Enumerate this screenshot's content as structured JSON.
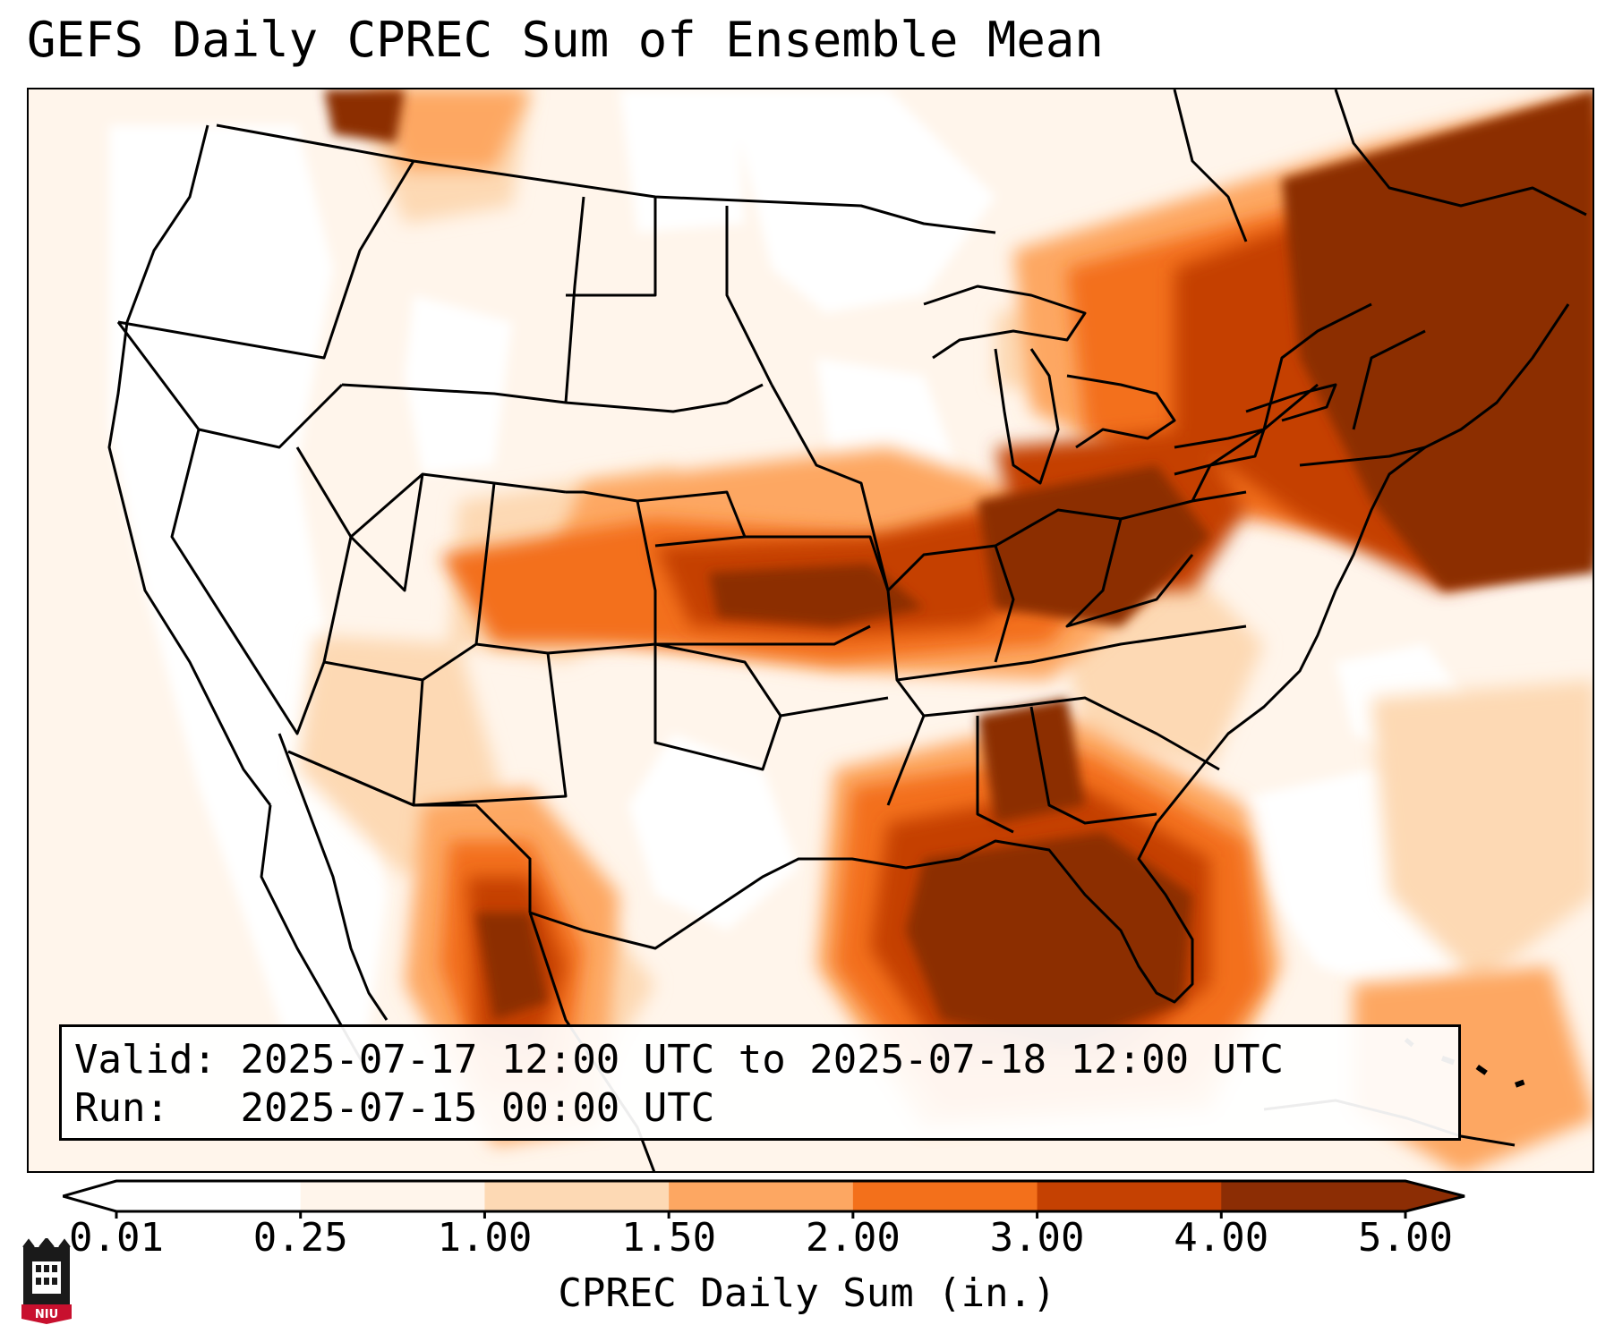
{
  "title": "GEFS Daily CPREC Sum of Ensemble Mean",
  "info": {
    "valid_label": "Valid:",
    "valid_value": "2025-07-17 12:00 UTC to 2025-07-18 12:00 UTC",
    "run_label": "Run:",
    "run_value": "2025-07-15 00:00 UTC"
  },
  "colorbar": {
    "title": "CPREC Daily Sum (in.)",
    "ticks": [
      "0.01",
      "0.25",
      "1.00",
      "1.50",
      "2.00",
      "3.00",
      "4.00",
      "5.00"
    ],
    "colors": [
      "#fff5eb",
      "#fdd9b4",
      "#fda762",
      "#f3701b",
      "#c54102",
      "#8c2d04"
    ],
    "under_color": "#ffffff",
    "over_color": "#8c2d04"
  },
  "map": {
    "projection": "conus-lambert",
    "field": "CPREC",
    "basemap": [
      "coastlines",
      "country-borders",
      "state-borders"
    ]
  },
  "logo": {
    "text": "NIU",
    "icon": "niu-tower-logo"
  }
}
